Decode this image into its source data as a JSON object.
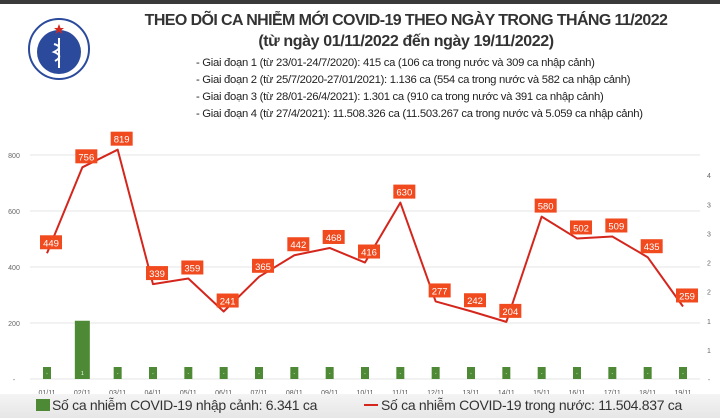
{
  "header": {
    "title": "THEO DÕI CA NHIỄM MỚI COVID-19 THEO NGÀY TRONG THÁNG 11/2022",
    "subtitle": "(từ ngày 01/11/2022 đến ngày 19/11/2022)",
    "phases": [
      "- Giai đoạn 1 (từ 23/01-24/7/2020): 415 ca (106 ca trong nước và 309 ca nhập cảnh)",
      "- Giai đoạn 2 (từ 25/7/2020-27/01/2021): 1.136 ca (554 ca trong nước và 582 ca nhập cảnh)",
      "- Giai đoạn 3 (từ 28/01-26/4/2021): 1.301 ca (910 ca trong nước và 391 ca nhập cảnh)",
      "- Giai đoạn 4 (từ 27/4/2021): 11.508.326 ca (11.503.267 ca trong nước và 5.059 ca nhập cảnh)"
    ],
    "logo_text": "BỘ Y TẾ · MINISTRY OF HEALTH"
  },
  "chart_data": {
    "type": "bar+line",
    "categories": [
      "01/11",
      "02/11",
      "03/11",
      "04/11",
      "05/11",
      "06/11",
      "07/11",
      "08/11",
      "09/11",
      "10/11",
      "11/11",
      "12/11",
      "13/11",
      "14/11",
      "15/11",
      "16/11",
      "17/11",
      "18/11",
      "19/11"
    ],
    "series": [
      {
        "name": "Số ca nhiễm COVID-19 nhập cảnh: 6.341 ca",
        "type": "bar",
        "axis": "right",
        "color": "#4e8a35",
        "values": [
          0,
          1,
          0,
          0,
          0,
          0,
          0,
          0,
          0,
          0,
          0,
          0,
          0,
          0,
          0,
          0,
          0,
          0,
          0
        ],
        "labels": [
          "-",
          "1",
          "-",
          "-",
          "-",
          "-",
          "-",
          "-",
          "-",
          "-",
          "-",
          "-",
          "-",
          "-",
          "-",
          "-",
          "-",
          "-",
          "-"
        ]
      },
      {
        "name": "Số ca nhiễm COVID-19 trong nước: 11.504.837 ca",
        "type": "line",
        "axis": "left",
        "color": "#d4261c",
        "label_color": "#f04a1e",
        "values": [
          449,
          756,
          819,
          339,
          359,
          241,
          365,
          442,
          468,
          416,
          630,
          277,
          242,
          204,
          580,
          502,
          509,
          435,
          259
        ]
      }
    ],
    "left_axis": {
      "range": [
        0,
        800
      ],
      "ticks": [
        "-",
        "200",
        "400",
        "600",
        "800"
      ]
    },
    "right_axis": {
      "range": [
        0,
        4
      ],
      "ticks": [
        "-",
        "1",
        "1",
        "2",
        "2",
        "3",
        "3",
        "4"
      ]
    },
    "grid": true,
    "legend": "bottom"
  }
}
